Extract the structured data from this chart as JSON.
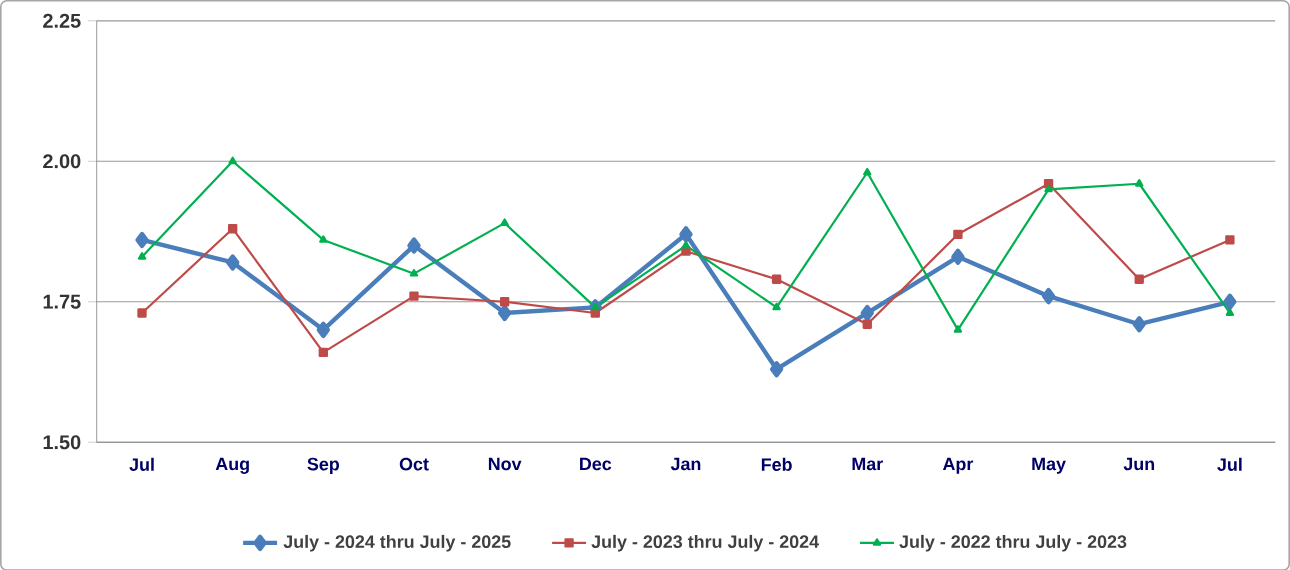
{
  "chart_data": {
    "type": "line",
    "categories": [
      "Jul",
      "Aug",
      "Sep",
      "Oct",
      "Nov",
      "Dec",
      "Jan",
      "Feb",
      "Mar",
      "Apr",
      "May",
      "Jun",
      "Jul"
    ],
    "series": [
      {
        "name": "July - 2024 thru July - 2025",
        "color": "#4a7ebb",
        "marker": "diamond",
        "values": [
          1.86,
          1.82,
          1.7,
          1.85,
          1.73,
          1.74,
          1.87,
          1.63,
          1.73,
          1.83,
          1.76,
          1.71,
          1.75
        ]
      },
      {
        "name": "July - 2023 thru July - 2024",
        "color": "#be4b48",
        "marker": "square",
        "values": [
          1.73,
          1.88,
          1.66,
          1.76,
          1.75,
          1.73,
          1.84,
          1.79,
          1.71,
          1.87,
          1.96,
          1.79,
          1.86
        ]
      },
      {
        "name": "July - 2022 thru July - 2023",
        "color": "#00b050",
        "marker": "triangle",
        "values": [
          1.83,
          2.0,
          1.86,
          1.8,
          1.89,
          1.74,
          1.85,
          1.74,
          1.98,
          1.7,
          1.95,
          1.96,
          1.73
        ]
      }
    ],
    "ylim": [
      1.5,
      2.25
    ],
    "yticks": [
      {
        "value": 1.5,
        "label": "1.50"
      },
      {
        "value": 1.75,
        "label": "1.75"
      },
      {
        "value": 2.0,
        "label": "2.00"
      },
      {
        "value": 2.25,
        "label": "2.25"
      }
    ],
    "grid": "y",
    "legend": "bottom"
  }
}
